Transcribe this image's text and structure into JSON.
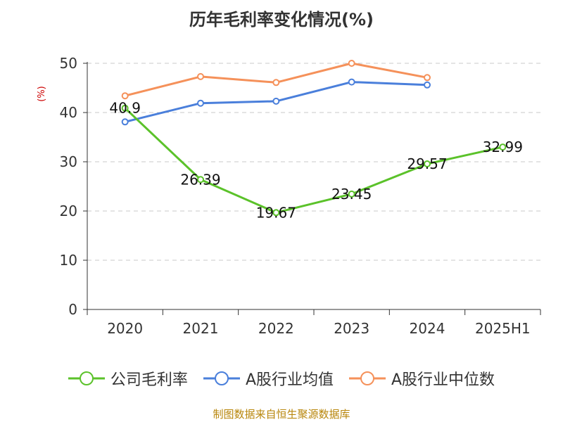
{
  "chart_data": {
    "type": "line",
    "title": "历年毛利率变化情况(%)",
    "ylabel": "(%)",
    "xlabel": "",
    "categories": [
      "2020",
      "2021",
      "2022",
      "2023",
      "2024",
      "2025H1"
    ],
    "ylim": [
      0,
      50
    ],
    "yticks": [
      0,
      10,
      20,
      30,
      40,
      50
    ],
    "grid": true,
    "legend_position": "bottom",
    "series": [
      {
        "name": "公司毛利率",
        "color": "#5bc22a",
        "values": [
          40.9,
          26.39,
          19.67,
          23.45,
          29.57,
          32.99
        ],
        "labels": [
          "40.9",
          "26.39",
          "19.67",
          "23.45",
          "29.57",
          "32.99"
        ]
      },
      {
        "name": "A股行业均值",
        "color": "#4a7fdb",
        "values": [
          38.1,
          41.9,
          42.3,
          46.2,
          45.6,
          null
        ]
      },
      {
        "name": "A股行业中位数",
        "color": "#f5915a",
        "values": [
          43.4,
          47.3,
          46.1,
          50.0,
          47.1,
          null
        ]
      }
    ]
  },
  "source": "制图数据来自恒生聚源数据库"
}
